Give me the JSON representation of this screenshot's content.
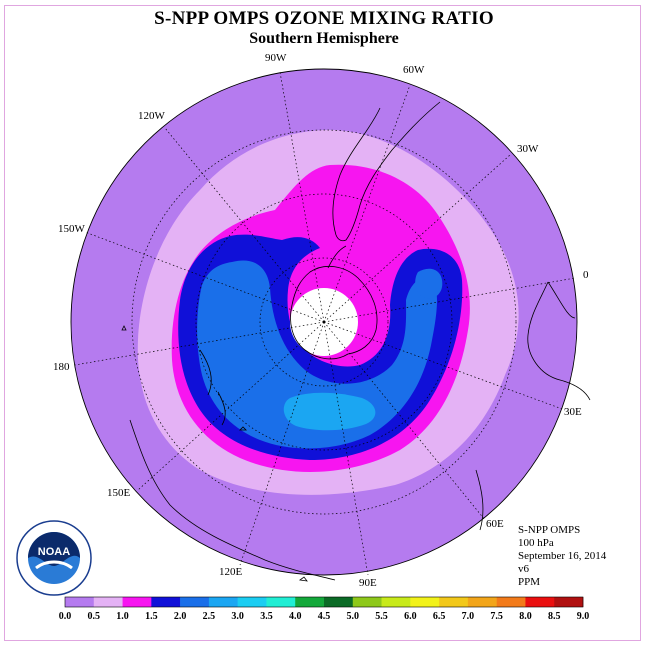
{
  "title": "S-NPP OMPS OZONE MIXING RATIO",
  "subtitle": "Southern Hemisphere",
  "longitude_labels": [
    {
      "key": "90W",
      "label": "90W"
    },
    {
      "key": "60W",
      "label": "60W"
    },
    {
      "key": "120W",
      "label": "120W"
    },
    {
      "key": "30W",
      "label": "30W"
    },
    {
      "key": "150W",
      "label": "150W"
    },
    {
      "key": "0",
      "label": "0"
    },
    {
      "key": "180",
      "label": "180"
    },
    {
      "key": "30E",
      "label": "30E"
    },
    {
      "key": "150E",
      "label": "150E"
    },
    {
      "key": "60E",
      "label": "60E"
    },
    {
      "key": "120E",
      "label": "120E"
    },
    {
      "key": "90E",
      "label": "90E"
    }
  ],
  "info": {
    "instrument": "S-NPP OMPS",
    "level": "100 hPa",
    "date": "September 16, 2014",
    "version": "v6",
    "units": "PPM"
  },
  "logo": {
    "text": "NOAA",
    "ring_text": "NATIONAL OCEANIC AND ATMOSPHERIC ADMINISTRATION",
    "ring_text_bottom": "U.S. DEPARTMENT OF COMMERCE"
  },
  "colorbar": {
    "ticks": [
      "0.0",
      "0.5",
      "1.0",
      "1.5",
      "2.0",
      "2.5",
      "3.0",
      "3.5",
      "4.0",
      "4.5",
      "5.0",
      "5.5",
      "6.0",
      "6.5",
      "7.0",
      "7.5",
      "8.0",
      "8.5",
      "9.0"
    ],
    "colors": [
      "#b57bef",
      "#e4b2f5",
      "#f715f0",
      "#1010d8",
      "#1a6fe9",
      "#1ba6f2",
      "#1bcdf2",
      "#20eed4",
      "#13a83a",
      "#0b6b26",
      "#8ec81a",
      "#c8ea1a",
      "#f2f21a",
      "#f2c81a",
      "#f2a51a",
      "#f27a1a",
      "#ea0f0f",
      "#b01010",
      "#7a5530"
    ]
  },
  "colors": {
    "background_field": "#b57bef",
    "polar_cap": "#ffffff",
    "frame": "#e0a6e0"
  }
}
